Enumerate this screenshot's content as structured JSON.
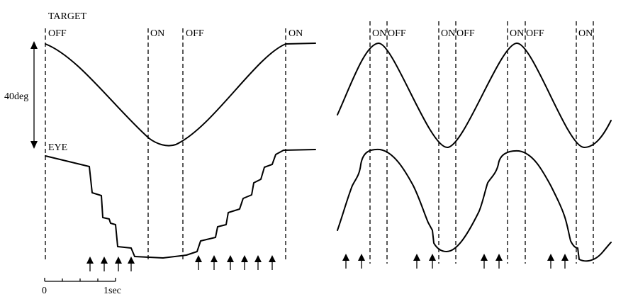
{
  "labels": {
    "target": "TARGET",
    "eye": "EYE",
    "amplitude": "40deg",
    "scale_zero": "0",
    "scale_end": "1sec"
  },
  "left_panel": {
    "phase_labels": [
      "OFF",
      "ON",
      "OFF",
      "ON"
    ]
  },
  "right_panel": {
    "phase_labels": [
      "ON",
      "OFF",
      "ON",
      "OFF",
      "ON",
      "OFF",
      "ON"
    ]
  }
}
